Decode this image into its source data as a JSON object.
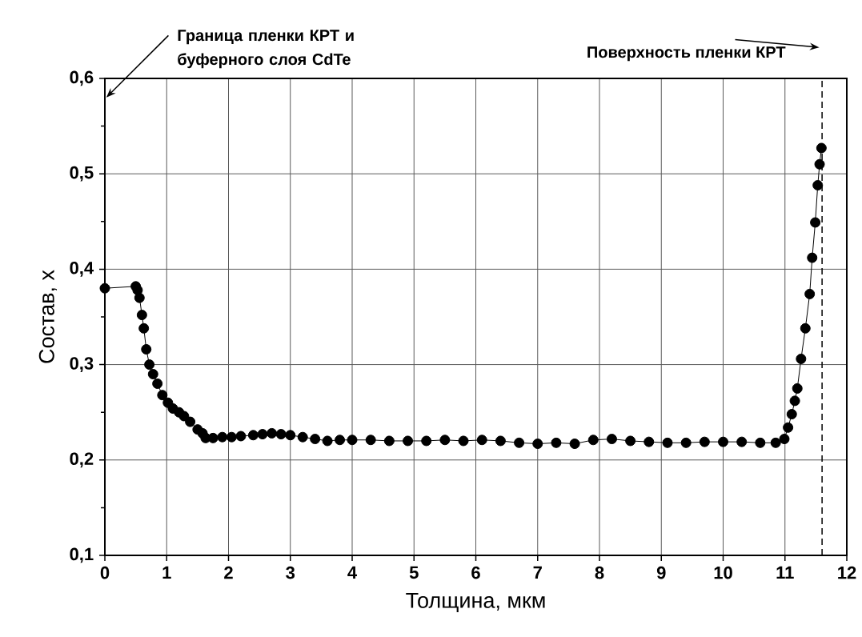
{
  "chart_data": {
    "type": "line",
    "xlabel": "Толщина, мкм",
    "ylabel": "Состав, x",
    "x": [
      0,
      0.5,
      0.53,
      0.56,
      0.6,
      0.63,
      0.67,
      0.72,
      0.78,
      0.85,
      0.93,
      1.02,
      1.1,
      1.2,
      1.28,
      1.38,
      1.5,
      1.58,
      1.63,
      1.75,
      1.9,
      2.05,
      2.2,
      2.4,
      2.55,
      2.7,
      2.85,
      3.0,
      3.2,
      3.4,
      3.6,
      3.8,
      4.0,
      4.3,
      4.6,
      4.9,
      5.2,
      5.5,
      5.8,
      6.1,
      6.4,
      6.7,
      7.0,
      7.3,
      7.6,
      7.9,
      8.2,
      8.5,
      8.8,
      9.1,
      9.4,
      9.7,
      10.0,
      10.3,
      10.6,
      10.85,
      10.99,
      11.05,
      11.11,
      11.16,
      11.2,
      11.26,
      11.33,
      11.4,
      11.44,
      11.49,
      11.53,
      11.56,
      11.59
    ],
    "values": [
      0.38,
      0.382,
      0.378,
      0.37,
      0.352,
      0.338,
      0.316,
      0.3,
      0.29,
      0.28,
      0.268,
      0.26,
      0.254,
      0.25,
      0.246,
      0.24,
      0.232,
      0.228,
      0.223,
      0.223,
      0.224,
      0.224,
      0.225,
      0.226,
      0.227,
      0.228,
      0.227,
      0.226,
      0.224,
      0.222,
      0.22,
      0.221,
      0.221,
      0.221,
      0.22,
      0.22,
      0.22,
      0.221,
      0.22,
      0.221,
      0.22,
      0.218,
      0.217,
      0.218,
      0.217,
      0.221,
      0.222,
      0.22,
      0.219,
      0.218,
      0.218,
      0.219,
      0.219,
      0.219,
      0.218,
      0.218,
      0.222,
      0.234,
      0.248,
      0.262,
      0.275,
      0.306,
      0.338,
      0.374,
      0.412,
      0.449,
      0.488,
      0.51,
      0.527
    ],
    "color": "#000000",
    "marker": "circle",
    "line_style": "solid",
    "xlim": [
      0,
      12
    ],
    "xticks": [
      0,
      1,
      2,
      3,
      4,
      5,
      6,
      7,
      8,
      9,
      10,
      11,
      12
    ],
    "ylim": [
      0.1,
      0.6
    ],
    "yticks": [
      {
        "value": 0.1,
        "label": "0,1"
      },
      {
        "value": 0.15,
        "label": null
      },
      {
        "value": 0.2,
        "label": "0,2"
      },
      {
        "value": 0.25,
        "label": null
      },
      {
        "value": 0.3,
        "label": "0,3"
      },
      {
        "value": 0.35,
        "label": null
      },
      {
        "value": 0.4,
        "label": "0,4"
      },
      {
        "value": 0.45,
        "label": null
      },
      {
        "value": 0.5,
        "label": "0,5"
      },
      {
        "value": 0.55,
        "label": null
      },
      {
        "value": 0.6,
        "label": "0,6"
      }
    ],
    "grid": true,
    "ref_lines": [
      {
        "axis": "x",
        "value": 11.6,
        "line_style": "dashed",
        "color": "#000000"
      }
    ],
    "annotations": [
      "Граница пленки КРТ и буферного слоя CdTe",
      "Поверхность пленки КРТ"
    ]
  }
}
